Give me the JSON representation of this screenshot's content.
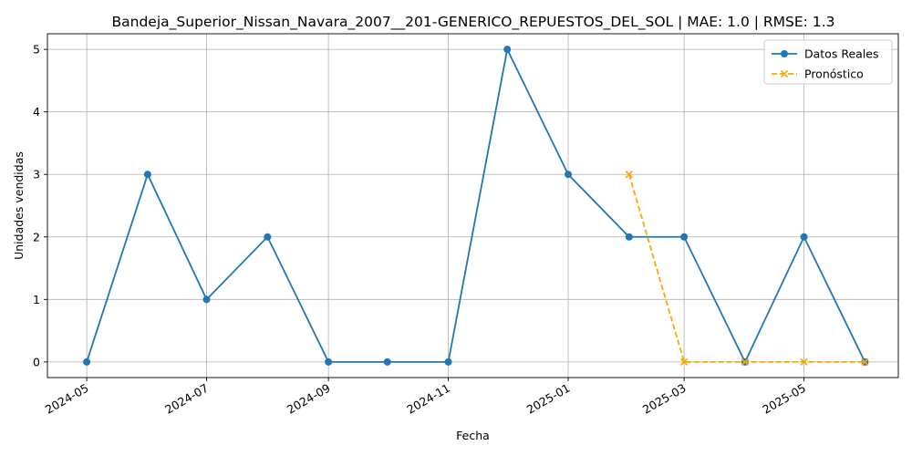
{
  "chart_data": {
    "type": "line",
    "title": "Bandeja_Superior_Nissan_Navara_2007__201-GENERICO_REPUESTOS_DEL_SOL | MAE: 1.0 | RMSE: 1.3",
    "xlabel": "Fecha",
    "ylabel": "Unidades vendidas",
    "x_ticks": [
      "2024-05",
      "2024-07",
      "2024-09",
      "2024-11",
      "2025-01",
      "2025-03",
      "2025-05"
    ],
    "y_ticks": [
      0,
      1,
      2,
      3,
      4,
      5
    ],
    "xlim": [
      "2024-04-11",
      "2025-06-18"
    ],
    "ylim": [
      -0.25,
      5.25
    ],
    "grid": true,
    "legend_position": "top-right",
    "series": [
      {
        "name": "Datos Reales",
        "color": "#1f77b4",
        "style": "solid",
        "marker": "circle",
        "x": [
          "2024-05-01",
          "2024-06-01",
          "2024-07-01",
          "2024-08-01",
          "2024-09-01",
          "2024-10-01",
          "2024-11-01",
          "2024-12-01",
          "2025-01-01",
          "2025-02-01",
          "2025-03-01",
          "2025-04-01",
          "2025-05-01",
          "2025-06-01"
        ],
        "values": [
          0,
          3,
          1,
          2,
          0,
          0,
          0,
          5,
          3,
          2,
          2,
          0,
          2,
          0
        ]
      },
      {
        "name": "Pronóstico",
        "color": "#ffa500",
        "style": "dashed",
        "marker": "x",
        "x": [
          "2025-02-01",
          "2025-03-01",
          "2025-04-01",
          "2025-05-01",
          "2025-06-01"
        ],
        "values": [
          3,
          0,
          0,
          0,
          0
        ]
      }
    ]
  }
}
